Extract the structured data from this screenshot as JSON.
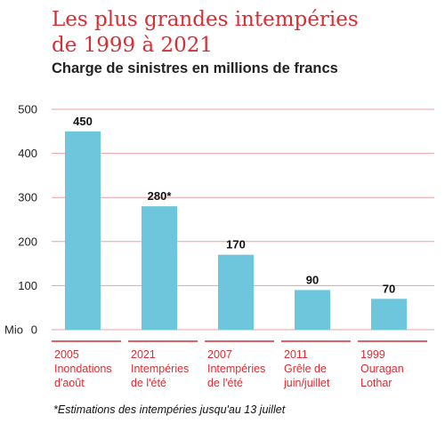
{
  "title_lines": [
    "Les plus grandes intempéries",
    "de 1999 à 2021"
  ],
  "subtitle": "Charge de sinistres en millions de francs",
  "footnote": "*Estimations des intempéries jusqu'au 13 juillet",
  "colors": {
    "accent": "#d62f36",
    "bar": "#6ec6dc",
    "grid": "#e8a0a3",
    "text": "#222222"
  },
  "chart_data": {
    "type": "bar",
    "title": "Les plus grandes intempéries de 1999 à 2021",
    "subtitle": "Charge de sinistres en millions de francs",
    "ylabel": "Mio",
    "ylim": [
      0,
      500
    ],
    "yticks": [
      0,
      100,
      200,
      300,
      400,
      500
    ],
    "grid": true,
    "categories": [
      [
        "2005",
        "Inondations",
        "d'août"
      ],
      [
        "2021",
        "Intempéries",
        "de l'été"
      ],
      [
        "2007",
        "Intempéries",
        "de l'été"
      ],
      [
        "2011",
        "Grêle de",
        "juin/juillet"
      ],
      [
        "1999",
        "Ouragan",
        "Lothar"
      ]
    ],
    "values": [
      450,
      280,
      170,
      90,
      70
    ],
    "value_labels": [
      "450",
      "280*",
      "170",
      "90",
      "70"
    ]
  }
}
